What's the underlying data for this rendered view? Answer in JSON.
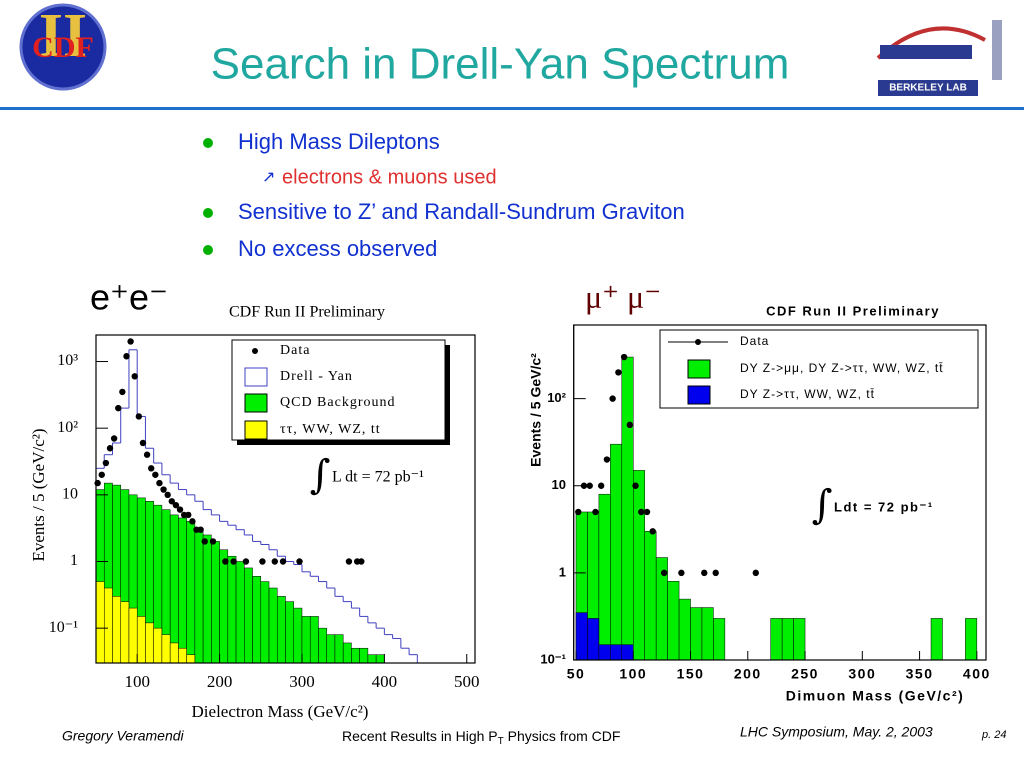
{
  "slide": {
    "title": "Search in Drell-Yan Spectrum",
    "logo_left": {
      "text": "CDF",
      "numeral": "II"
    },
    "logo_right": {
      "text": "BERKELEY LAB"
    },
    "bullets": [
      {
        "text": "High Mass Dileptons",
        "sub": [
          "electrons & muons used"
        ]
      },
      {
        "text": "Sensitive to Z’ and Randall-Sundrum Graviton"
      },
      {
        "text": "No excess observed"
      }
    ],
    "plot_labels": [
      "e⁺e⁻",
      "μ⁺ μ⁻"
    ],
    "footer": {
      "author": "Gregory Veramendi",
      "talk": [
        "Recent Results in High P",
        "T",
        " Physics from CDF"
      ],
      "event": "LHC Symposium, May. 2, 2003",
      "page": "p. 24"
    }
  },
  "chart_data": [
    {
      "type": "histogram",
      "title": "CDF Run II Preliminary",
      "xlabel": "Dielectron Mass (GeV/c²)",
      "ylabel": "Events / 5 (GeV/c²)",
      "annotation": "L dt = 72 pb⁻¹",
      "log_y": true,
      "grid": false,
      "xlim": [
        50,
        510
      ],
      "xticks": [
        100,
        200,
        300,
        400,
        500
      ],
      "ylim": [
        0.03,
        2500
      ],
      "yticks": [
        {
          "value": 0.1,
          "label": "10⁻¹"
        },
        1,
        10,
        {
          "value": 100,
          "label": "10²"
        },
        {
          "value": 1000,
          "label": "10³"
        }
      ],
      "bins": [
        50,
        60,
        70,
        80,
        90,
        100,
        110,
        120,
        130,
        140,
        150,
        160,
        170,
        180,
        190,
        200,
        210,
        220,
        230,
        240,
        250,
        260,
        270,
        280,
        290,
        300,
        310,
        320,
        330,
        340,
        350,
        360,
        370,
        380,
        390,
        400,
        410,
        420,
        430,
        440
      ],
      "series": [
        {
          "name": "Drell - Yan",
          "color": "#4040c0",
          "filled": false,
          "values": [
            25,
            40,
            60,
            200,
            1500,
            150,
            50,
            30,
            20,
            15,
            12,
            10,
            8,
            6,
            5,
            4,
            3.5,
            3,
            2.5,
            2,
            1.8,
            1.5,
            1.2,
            1,
            0.9,
            0.7,
            0.6,
            0.5,
            0.4,
            0.3,
            0.25,
            0.2,
            0.15,
            0.12,
            0.1,
            0.08,
            0.07,
            0.05,
            0.04
          ]
        },
        {
          "name": "QCD Background",
          "color": "#00ee00",
          "filled": true,
          "values": [
            12,
            15,
            14,
            12,
            10,
            9,
            8,
            7,
            6,
            5,
            4.5,
            4,
            3,
            2.5,
            2,
            1.5,
            1.2,
            1,
            0.8,
            0.6,
            0.5,
            0.4,
            0.3,
            0.25,
            0.2,
            0.15,
            0.15,
            0.1,
            0.08,
            0.08,
            0.06,
            0.05,
            0.05,
            0.04,
            0.04,
            null,
            null,
            null,
            null
          ]
        },
        {
          "name": "ττ, WW, WZ, tt",
          "color": "#ffff00",
          "filled": true,
          "values": [
            0.5,
            0.4,
            0.3,
            0.25,
            0.2,
            0.15,
            0.12,
            0.1,
            0.08,
            0.06,
            0.05,
            0.04,
            null,
            null,
            null,
            null,
            null,
            null,
            null,
            null,
            null,
            null,
            null,
            null,
            null,
            null,
            null,
            null,
            null,
            null,
            null,
            null,
            null,
            null,
            null,
            null,
            null,
            null,
            null
          ]
        }
      ],
      "points": {
        "name": "Data",
        "color": "#000000",
        "x": [
          52,
          57,
          62,
          67,
          72,
          77,
          82,
          87,
          92,
          97,
          102,
          107,
          112,
          117,
          122,
          127,
          132,
          137,
          142,
          147,
          152,
          157,
          162,
          167,
          172,
          177,
          182,
          192,
          207,
          217,
          232,
          252,
          267,
          277,
          297,
          357,
          367,
          372
        ],
        "values": [
          15,
          20,
          30,
          50,
          70,
          200,
          350,
          1200,
          2000,
          600,
          150,
          60,
          40,
          25,
          20,
          15,
          12,
          10,
          8,
          7,
          6,
          5,
          5,
          4,
          3,
          3,
          2,
          2,
          1,
          1,
          1,
          1,
          1,
          1,
          1,
          1,
          1,
          1
        ]
      }
    },
    {
      "type": "histogram",
      "title": "CDF Run II Preliminary",
      "xlabel": "Dimuon Mass (GeV/c²)",
      "ylabel": "Events / 5 GeV/c²",
      "annotation": "Ldt = 72 pb⁻¹",
      "log_y": true,
      "grid": false,
      "xlim": [
        48,
        408
      ],
      "xticks": [
        50,
        100,
        150,
        200,
        250,
        300,
        350,
        400
      ],
      "ylim": [
        0.1,
        700
      ],
      "yticks": [
        {
          "value": 0.1,
          "label": "10⁻¹"
        },
        1,
        10,
        {
          "value": 100,
          "label": "10²"
        }
      ],
      "bins": [
        50,
        60,
        70,
        80,
        90,
        100,
        110,
        120,
        130,
        140,
        150,
        160,
        170,
        180,
        190,
        200,
        210,
        220,
        230,
        240,
        250,
        260,
        270,
        280,
        290,
        300,
        310,
        320,
        330,
        340,
        350,
        360,
        370,
        380,
        390,
        400
      ],
      "series": [
        {
          "name": "DY Z->μμ, DY Z->ττ, WW, WZ, tt̄",
          "color": "#00ee00",
          "filled": true,
          "values": [
            5,
            5,
            8,
            30,
            300,
            15,
            3,
            1.5,
            0.8,
            0.5,
            0.4,
            0.4,
            0.3,
            null,
            null,
            null,
            null,
            0.3,
            0.3,
            0.3,
            null,
            null,
            null,
            null,
            null,
            null,
            null,
            null,
            null,
            null,
            null,
            0.3,
            null,
            null,
            0.3
          ]
        },
        {
          "name": "DY Z->ττ, WW, WZ, tt̄",
          "color": "#0000ee",
          "filled": true,
          "values": [
            0.35,
            0.3,
            0.15,
            0.15,
            0.15,
            null,
            null,
            null,
            null,
            null,
            null,
            null,
            null,
            null,
            null,
            null,
            null,
            null,
            null,
            null,
            null,
            null,
            null,
            null,
            null,
            null,
            null,
            null,
            null,
            null,
            null,
            null,
            null,
            null,
            null
          ]
        }
      ],
      "points": {
        "name": "Data",
        "color": "#000000",
        "x": [
          52,
          57,
          62,
          67,
          72,
          77,
          82,
          87,
          92,
          97,
          102,
          107,
          112,
          117,
          127,
          142,
          162,
          172,
          207
        ],
        "values": [
          5,
          10,
          10,
          5,
          10,
          20,
          100,
          200,
          300,
          50,
          10,
          5,
          5,
          3,
          1,
          1,
          1,
          1,
          1
        ]
      }
    }
  ]
}
